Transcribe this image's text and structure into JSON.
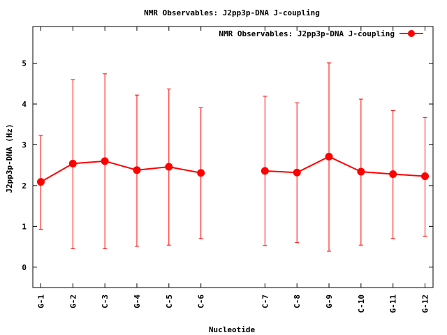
{
  "chart_data": {
    "type": "line",
    "title": "NMR Observables: J2pp3p-DNA J-coupling",
    "xlabel": "Nucleotide",
    "ylabel": "J2pp3p-DNA (Hz)",
    "ylim": [
      -0.5,
      5.9
    ],
    "yticks": [
      0,
      1,
      2,
      3,
      4,
      5
    ],
    "grid": false,
    "legend_position": "top-right",
    "color": "#ff0000",
    "categories": [
      "G-1",
      "G-2",
      "C-3",
      "G-4",
      "C-5",
      "C-6",
      "C-7",
      "C-8",
      "G-9",
      "C-10",
      "G-11",
      "G-12"
    ],
    "x_positions": [
      1,
      2,
      3,
      4,
      5,
      6,
      8,
      9,
      10,
      11,
      12,
      13
    ],
    "xlim": [
      0.75,
      13.25
    ],
    "segments": [
      [
        0,
        5
      ],
      [
        6,
        11
      ]
    ],
    "series": [
      {
        "name": "NMR Observables: J2pp3p-DNA J-coupling",
        "values": [
          2.09,
          2.54,
          2.6,
          2.38,
          2.46,
          2.31,
          2.36,
          2.32,
          2.71,
          2.34,
          2.28,
          2.23
        ],
        "err_low": [
          0.93,
          0.45,
          0.45,
          0.51,
          0.54,
          0.7,
          0.53,
          0.6,
          0.39,
          0.54,
          0.7,
          0.76
        ],
        "err_high": [
          3.23,
          4.6,
          4.74,
          4.22,
          4.37,
          3.91,
          4.19,
          4.03,
          5.01,
          4.12,
          3.84,
          3.67
        ]
      }
    ]
  }
}
